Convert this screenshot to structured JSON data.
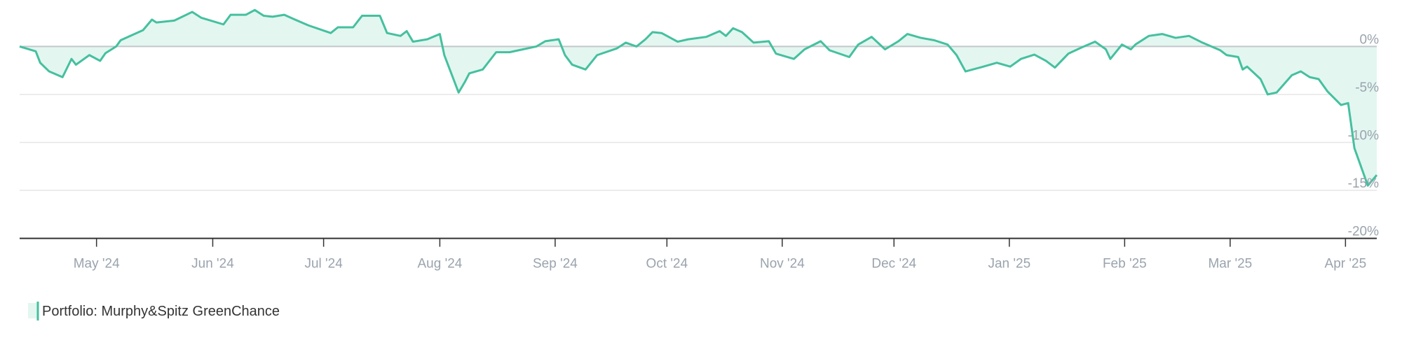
{
  "chart_data": {
    "type": "line",
    "x": [
      22,
      40,
      45,
      55,
      70,
      80,
      85,
      100,
      112,
      118,
      130,
      135,
      160,
      170,
      175,
      195,
      215,
      225,
      250,
      258,
      275,
      285,
      295,
      305,
      318,
      330,
      345,
      370,
      378,
      395,
      405,
      425,
      433,
      448,
      455,
      462,
      478,
      492,
      497,
      513,
      520,
      525,
      540,
      555,
      570,
      580,
      600,
      610,
      625,
      632,
      640,
      655,
      668,
      690,
      700,
      712,
      722,
      730,
      740,
      758,
      770,
      790,
      805,
      812,
      820,
      830,
      843,
      860,
      868,
      888,
      900,
      918,
      928,
      950,
      960,
      975,
      990,
      1005,
      1015,
      1030,
      1045,
      1060,
      1070,
      1080,
      1100,
      1115,
      1130,
      1142,
      1157,
      1170,
      1180,
      1195,
      1210,
      1225,
      1237,
      1242,
      1255,
      1265,
      1270,
      1285,
      1300,
      1315,
      1330,
      1345,
      1355,
      1365,
      1372,
      1385,
      1390,
      1395,
      1410,
      1418,
      1428,
      1445,
      1455,
      1465,
      1475,
      1485,
      1500,
      1508,
      1515,
      1530,
      1540
    ],
    "series": [
      {
        "name": "Portfolio: Murphy&Spitz GreenChance",
        "color": "#45c09f",
        "fill": "#e3f6f0",
        "values": [
          0,
          -0.5,
          -1.7,
          -2.6,
          -3.2,
          -1.3,
          -1.9,
          -0.9,
          -1.5,
          -0.7,
          0,
          0.65,
          1.7,
          2.8,
          2.5,
          2.7,
          3.6,
          3.0,
          2.3,
          3.3,
          3.3,
          3.8,
          3.2,
          3.1,
          3.3,
          2.8,
          2.2,
          1.4,
          2.0,
          2.0,
          3.2,
          3.2,
          1.4,
          1.1,
          1.6,
          0.5,
          0.75,
          1.3,
          -0.9,
          -4.8,
          -3.7,
          -2.8,
          -2.4,
          -0.6,
          -0.6,
          -0.4,
          0,
          0.55,
          0.75,
          -0.9,
          -1.9,
          -2.4,
          -0.9,
          -0.2,
          0.4,
          0,
          0.75,
          1.5,
          1.4,
          0.5,
          0.75,
          1.0,
          1.6,
          1.1,
          1.9,
          1.5,
          0.4,
          0.55,
          -0.75,
          -1.3,
          -0.3,
          0.55,
          -0.4,
          -1.1,
          0.2,
          1.0,
          -0.3,
          0.55,
          1.3,
          0.9,
          0.65,
          0.2,
          -0.9,
          -2.6,
          -2.1,
          -1.7,
          -2.1,
          -1.3,
          -0.85,
          -1.5,
          -2.2,
          -0.75,
          -0.1,
          0.5,
          -0.3,
          -1.3,
          0.2,
          -0.3,
          0.2,
          1.1,
          1.3,
          0.9,
          1.1,
          0.4,
          0,
          -0.4,
          -0.9,
          -1.1,
          -2.4,
          -2.1,
          -3.4,
          -5.0,
          -4.8,
          -3.0,
          -2.6,
          -3.2,
          -3.4,
          -4.7,
          -6.1,
          -5.9,
          -10.6,
          -14.5,
          -13.4
        ]
      }
    ],
    "xlim": [
      22,
      1540
    ],
    "xticks": [
      {
        "value": 108,
        "label": "May '24"
      },
      {
        "value": 238,
        "label": "Jun '24"
      },
      {
        "value": 362,
        "label": "Jul '24"
      },
      {
        "value": 492,
        "label": "Aug '24"
      },
      {
        "value": 621,
        "label": "Sep '24"
      },
      {
        "value": 746,
        "label": "Oct '24"
      },
      {
        "value": 875,
        "label": "Nov '24"
      },
      {
        "value": 1000,
        "label": "Dec '24"
      },
      {
        "value": 1129,
        "label": "Jan '25"
      },
      {
        "value": 1258,
        "label": "Feb '25"
      },
      {
        "value": 1376,
        "label": "Mar '25"
      },
      {
        "value": 1505,
        "label": "Apr '25"
      }
    ],
    "ylim": [
      -20,
      4.8
    ],
    "yticks": [
      {
        "value": 0,
        "label": "0%"
      },
      {
        "value": -5,
        "label": "-5%"
      },
      {
        "value": -10,
        "label": "-10%"
      },
      {
        "value": -15,
        "label": "-15%"
      },
      {
        "value": -20,
        "label": "-20%"
      }
    ],
    "grid": true
  }
}
